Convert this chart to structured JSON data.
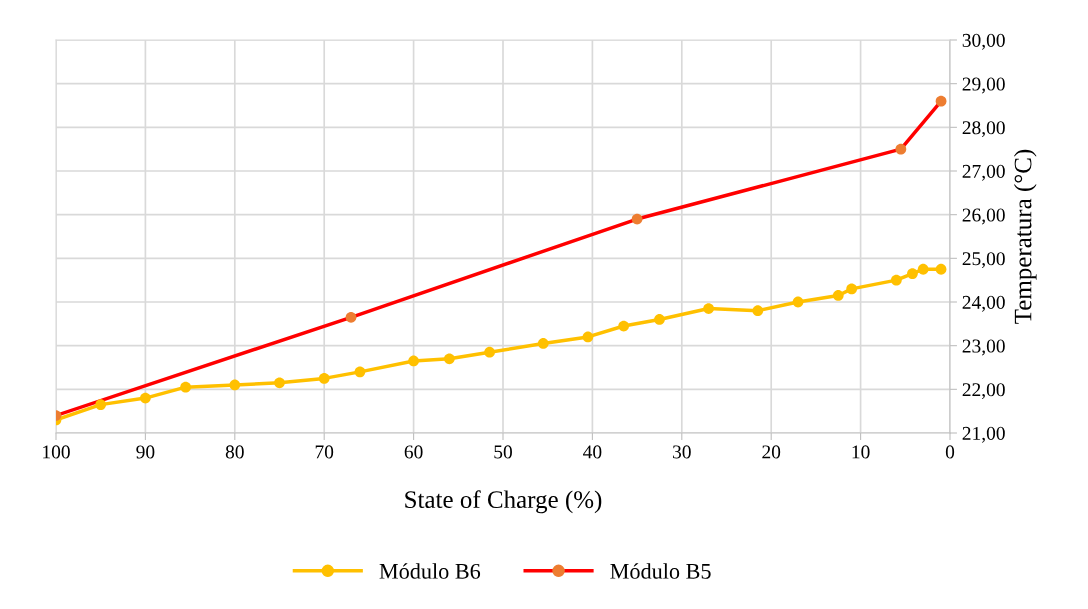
{
  "chart_data": {
    "type": "line",
    "xlabel": "State of Charge (%)",
    "ylabel": "Temperatura (°C)",
    "xlim": [
      100,
      0
    ],
    "xticks": [
      100,
      90,
      80,
      70,
      60,
      50,
      40,
      30,
      20,
      10,
      0
    ],
    "ylim": [
      21,
      30
    ],
    "yticks": [
      {
        "value": 21,
        "label": "21,00"
      },
      {
        "value": 22,
        "label": "22,00"
      },
      {
        "value": 23,
        "label": "23,00"
      },
      {
        "value": 24,
        "label": "24,00"
      },
      {
        "value": 25,
        "label": "25,00"
      },
      {
        "value": 26,
        "label": "26,00"
      },
      {
        "value": 27,
        "label": "27,00"
      },
      {
        "value": 28,
        "label": "28,00"
      },
      {
        "value": 29,
        "label": "29,00"
      },
      {
        "value": 30,
        "label": "30,00"
      }
    ],
    "grid": true,
    "legend": "bottom",
    "marker": "circle",
    "line_style": "solid",
    "series": [
      {
        "name": "Módulo B6",
        "color": "#ffc000",
        "x": [
          100,
          95,
          90,
          85.5,
          80,
          75,
          70,
          66,
          60,
          56,
          51.5,
          45.5,
          40.5,
          36.5,
          32.5,
          27,
          21.5,
          17,
          12.5,
          11,
          6,
          4.2,
          3,
          1
        ],
        "values": [
          21.3,
          21.65,
          21.8,
          22.05,
          22.1,
          22.15,
          22.25,
          22.4,
          22.65,
          22.7,
          22.85,
          23.05,
          23.2,
          23.45,
          23.6,
          23.85,
          23.8,
          24.0,
          24.15,
          24.3,
          24.5,
          24.65,
          24.75,
          24.75
        ]
      },
      {
        "name": "Módulo B5",
        "color": "#ff0000",
        "colors": [
          "#ed7d31",
          "#ed7d31",
          "#ed7d31",
          "#ed7d31",
          "#ed7d31"
        ],
        "x": [
          100,
          67,
          35,
          5.5,
          1
        ],
        "values": [
          21.4,
          23.65,
          25.9,
          27.5,
          28.6
        ]
      }
    ]
  }
}
